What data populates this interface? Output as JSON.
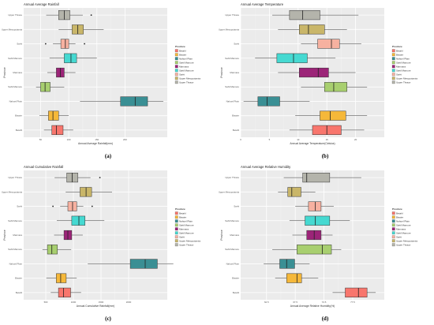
{
  "captions": [
    "(a)",
    "(b)",
    "(c)",
    "(d)"
  ],
  "legend": {
    "title": "Province",
    "items": [
      {
        "label": "Betahl",
        "color": "#f8766d"
      },
      {
        "label": "Bisaire",
        "color": "#f5b83a"
      },
      {
        "label": "Nahoel Plain",
        "color": "#3a8f94"
      },
      {
        "label": "Sahil Mamure",
        "color": "#a8cf6f"
      },
      {
        "label": "Marmara",
        "color": "#9c2478"
      },
      {
        "label": "Sahil Mamure",
        "color": "#45d9d1"
      },
      {
        "label": "Sarhi",
        "color": "#f7b1a0"
      },
      {
        "label": "Upper Mesopotamia",
        "color": "#c9b669"
      },
      {
        "label": "Upper Thrace",
        "color": "#b4b4ab"
      }
    ]
  },
  "chart_data": [
    {
      "type": "boxplot",
      "title": "Annual Average Rainfall",
      "xlabel": "Annual Average Rainfall(mm)",
      "ylabel": "Province",
      "xlim": [
        20,
        275
      ],
      "xticks": [
        50,
        100,
        150,
        200
      ],
      "tick_labels": [
        "50",
        "100",
        "150",
        "200"
      ],
      "categories": [
        "Upper Thrace",
        "Upper Mesopotamia",
        "Sarhi",
        "Sahil Mamure",
        "Marmara",
        "Sahil Mamure",
        "Nahoel Plain",
        "Bisaire",
        "Betahl"
      ],
      "boxes": [
        {
          "whisker_low": 60,
          "q1": 82,
          "median": 92,
          "q3": 102,
          "whisker_high": 125,
          "outliers": [
            140
          ]
        },
        {
          "whisker_low": 82,
          "q1": 106,
          "median": 116,
          "q3": 126,
          "whisker_high": 162,
          "outliers": []
        },
        {
          "whisker_low": 72,
          "q1": 86,
          "median": 94,
          "q3": 100,
          "whisker_high": 112,
          "outliers": [
            59,
            128
          ]
        },
        {
          "whisker_low": 66,
          "q1": 92,
          "median": 104,
          "q3": 114,
          "whisker_high": 150,
          "outliers": []
        },
        {
          "whisker_low": 62,
          "q1": 78,
          "median": 85,
          "q3": 92,
          "whisker_high": 112,
          "outliers": []
        },
        {
          "whisker_low": 42,
          "q1": 50,
          "median": 58,
          "q3": 67,
          "whisker_high": 92,
          "outliers": []
        },
        {
          "whisker_low": 120,
          "q1": 192,
          "median": 218,
          "q3": 240,
          "whisker_high": 268,
          "outliers": []
        },
        {
          "whisker_low": 48,
          "q1": 64,
          "median": 72,
          "q3": 82,
          "whisker_high": 100,
          "outliers": []
        },
        {
          "whisker_low": 56,
          "q1": 70,
          "median": 78,
          "q3": 90,
          "whisker_high": 108,
          "outliers": []
        }
      ]
    },
    {
      "type": "boxplot",
      "title": "Annual Average Temperature",
      "xlabel": "Annual Average Temperature(Celsius)",
      "ylabel": "Province",
      "xlim": [
        0,
        25
      ],
      "xticks": [
        0,
        5,
        10,
        15,
        20
      ],
      "tick_labels": [
        "0",
        "5",
        "10",
        "15",
        "20"
      ],
      "categories": [
        "Upper Thrace",
        "Upper Mesopotamia",
        "Sarhi",
        "Sahil Mamure",
        "Marmara",
        "Sahil Mamure",
        "Nahoel Plain",
        "Bisaire",
        "Betahl"
      ],
      "boxes": [
        {
          "whisker_low": 5.5,
          "q1": 8.5,
          "median": 10.8,
          "q3": 13.8,
          "whisker_high": 20.5,
          "outliers": []
        },
        {
          "whisker_low": 6.5,
          "q1": 10.2,
          "median": 11.8,
          "q3": 14.6,
          "whisker_high": 18.5,
          "outliers": []
        },
        {
          "whisker_low": 10.5,
          "q1": 13.4,
          "median": 15.8,
          "q3": 17.2,
          "whisker_high": 21.0,
          "outliers": []
        },
        {
          "whisker_low": 2.5,
          "q1": 6.3,
          "median": 9.2,
          "q3": 11.6,
          "whisker_high": 16.5,
          "outliers": []
        },
        {
          "whisker_low": 6.5,
          "q1": 10.2,
          "median": 13.5,
          "q3": 15.3,
          "whisker_high": 20.0,
          "outliers": []
        },
        {
          "whisker_low": 10.5,
          "q1": 14.6,
          "median": 16.2,
          "q3": 18.5,
          "whisker_high": 22.0,
          "outliers": []
        },
        {
          "whisker_low": 0.5,
          "q1": 3.0,
          "median": 4.6,
          "q3": 6.8,
          "whisker_high": 12.0,
          "outliers": []
        },
        {
          "whisker_low": 9.5,
          "q1": 13.8,
          "median": 15.6,
          "q3": 18.3,
          "whisker_high": 22.0,
          "outliers": []
        },
        {
          "whisker_low": 8.5,
          "q1": 12.5,
          "median": 15.0,
          "q3": 17.5,
          "whisker_high": 21.5,
          "outliers": []
        }
      ]
    },
    {
      "type": "boxplot",
      "title": "Annual Cumulative Rainfall",
      "xlabel": "Annual Cumulative Rainfall(mm)",
      "ylabel": "Province",
      "xlim": [
        100,
        2700
      ],
      "xticks": [
        500,
        1000,
        1500,
        2000
      ],
      "tick_labels": [
        "500",
        "1000",
        "1500",
        "2000"
      ],
      "categories": [
        "Upper Thrace",
        "Upper Mesopotamia",
        "Sarhi",
        "Sahil Mamure",
        "Marmara",
        "Sahil Mamure",
        "Nahoel Plain",
        "Bisaire",
        "Betahl"
      ],
      "boxes": [
        {
          "whisker_low": 660,
          "q1": 880,
          "median": 980,
          "q3": 1080,
          "whisker_high": 1310,
          "outliers": [
            1480
          ]
        },
        {
          "whisker_low": 860,
          "q1": 1120,
          "median": 1230,
          "q3": 1330,
          "whisker_high": 1700,
          "outliers": []
        },
        {
          "whisker_low": 760,
          "q1": 900,
          "median": 985,
          "q3": 1060,
          "whisker_high": 1180,
          "outliers": [
            630,
            1340
          ]
        },
        {
          "whisker_low": 700,
          "q1": 970,
          "median": 1100,
          "q3": 1210,
          "whisker_high": 1560,
          "outliers": []
        },
        {
          "whisker_low": 650,
          "q1": 830,
          "median": 900,
          "q3": 970,
          "whisker_high": 1170,
          "outliers": []
        },
        {
          "whisker_low": 440,
          "q1": 530,
          "median": 610,
          "q3": 710,
          "whisker_high": 960,
          "outliers": []
        },
        {
          "whisker_low": 1260,
          "q1": 2030,
          "median": 2300,
          "q3": 2520,
          "whisker_high": 2810,
          "outliers": []
        },
        {
          "whisker_low": 510,
          "q1": 690,
          "median": 770,
          "q3": 870,
          "whisker_high": 1060,
          "outliers": []
        },
        {
          "whisker_low": 590,
          "q1": 730,
          "median": 820,
          "q3": 950,
          "whisker_high": 1140,
          "outliers": []
        }
      ]
    },
    {
      "type": "boxplot",
      "title": "Annual Average Relative Humidity",
      "xlabel": "Annual Average Relative Humidity(%)",
      "ylabel": "Province",
      "xlim": [
        58,
        83
      ],
      "xticks": [
        62.5,
        67.5,
        72.5,
        77.5
      ],
      "tick_labels": [
        "62.5",
        "67.5",
        "72.5",
        "77.5"
      ],
      "categories": [
        "Upper Thrace",
        "Upper Mesopotamia",
        "Sarhi",
        "Sahil Mamure",
        "Marmara",
        "Sahil Mamure",
        "Nahoel Plain",
        "Bisaire",
        "Betahl"
      ],
      "boxes": [
        {
          "whisker_low": 65.5,
          "q1": 68.8,
          "median": 69.5,
          "q3": 73.5,
          "whisker_high": 79.0,
          "outliers": []
        },
        {
          "whisker_low": 64.5,
          "q1": 66.2,
          "median": 66.9,
          "q3": 68.5,
          "whisker_high": 71.0,
          "outliers": []
        },
        {
          "whisker_low": 67.5,
          "q1": 69.8,
          "median": 71.0,
          "q3": 72.0,
          "whisker_high": 74.2,
          "outliers": []
        },
        {
          "whisker_low": 66.5,
          "q1": 69.2,
          "median": 71.0,
          "q3": 73.5,
          "whisker_high": 77.0,
          "outliers": []
        },
        {
          "whisker_low": 67.0,
          "q1": 69.5,
          "median": 70.8,
          "q3": 72.0,
          "whisker_high": 74.0,
          "outliers": []
        },
        {
          "whisker_low": 63.5,
          "q1": 67.8,
          "median": 72.2,
          "q3": 73.8,
          "whisker_high": 75.5,
          "outliers": []
        },
        {
          "whisker_low": 62.0,
          "q1": 64.8,
          "median": 66.0,
          "q3": 67.4,
          "whisker_high": 70.0,
          "outliers": []
        },
        {
          "whisker_low": 64.0,
          "q1": 66.0,
          "median": 67.8,
          "q3": 68.6,
          "whisker_high": 71.5,
          "outliers": []
        },
        {
          "whisker_low": 74.0,
          "q1": 76.2,
          "median": 78.5,
          "q3": 80.0,
          "whisker_high": 81.5,
          "outliers": []
        }
      ]
    }
  ]
}
